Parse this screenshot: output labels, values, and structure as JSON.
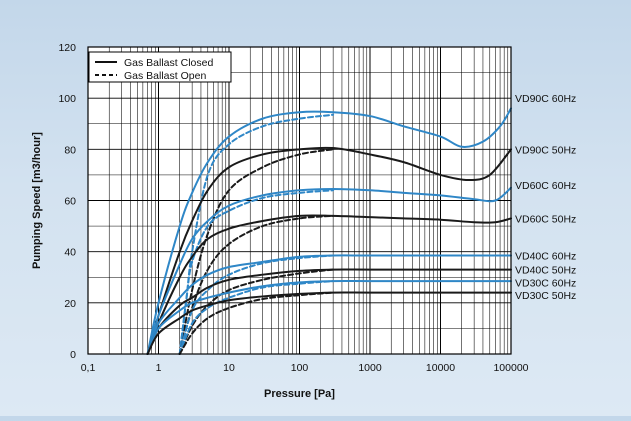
{
  "chart_data": {
    "type": "line",
    "xlabel": "Pressure [Pa]",
    "ylabel": "Pumping Speed [m3/hour]",
    "x_scale": "log",
    "xlim": [
      0.1,
      100000
    ],
    "ylim": [
      0,
      120
    ],
    "x_ticks": [
      {
        "value": 0.1,
        "label": "0,1"
      },
      {
        "value": 1,
        "label": "1"
      },
      {
        "value": 10,
        "label": "10"
      },
      {
        "value": 100,
        "label": "100"
      },
      {
        "value": 1000,
        "label": "1000"
      },
      {
        "value": 10000,
        "label": "10000"
      },
      {
        "value": 100000,
        "label": "100000"
      }
    ],
    "y_ticks": [
      0,
      20,
      40,
      60,
      80,
      100,
      120
    ],
    "grid": true,
    "legend": {
      "position": "top-left",
      "entries": [
        {
          "label": "Gas Ballast Closed",
          "style": "solid"
        },
        {
          "label": "Gas Ballast Open",
          "style": "dashed"
        }
      ]
    },
    "colors": {
      "blue": "#2f87c7",
      "black": "#1a1a1a"
    },
    "series": [
      {
        "name": "VD90C  60Hz",
        "color": "blue",
        "style": "solid",
        "points": [
          [
            0.7,
            0
          ],
          [
            1,
            20
          ],
          [
            2,
            50
          ],
          [
            3,
            63
          ],
          [
            5,
            75
          ],
          [
            10,
            85
          ],
          [
            30,
            92
          ],
          [
            100,
            94.5
          ],
          [
            300,
            94.5
          ],
          [
            1000,
            93
          ],
          [
            3000,
            89
          ],
          [
            10000,
            85
          ],
          [
            20000,
            81
          ],
          [
            40000,
            83
          ],
          [
            70000,
            89
          ],
          [
            100000,
            96
          ]
        ]
      },
      {
        "name": "VD90C  60Hz",
        "color": "blue",
        "style": "dashed",
        "points": [
          [
            2,
            0
          ],
          [
            2.5,
            22
          ],
          [
            3,
            40
          ],
          [
            5,
            70
          ],
          [
            10,
            82
          ],
          [
            30,
            89
          ],
          [
            100,
            92
          ],
          [
            300,
            93.5
          ]
        ]
      },
      {
        "name": "VD90C  50Hz",
        "color": "black",
        "style": "solid",
        "points": [
          [
            0.7,
            0
          ],
          [
            1,
            15
          ],
          [
            2,
            40
          ],
          [
            3,
            52
          ],
          [
            5,
            64
          ],
          [
            10,
            73
          ],
          [
            30,
            78
          ],
          [
            100,
            80
          ],
          [
            300,
            80.5
          ],
          [
            1000,
            78
          ],
          [
            3000,
            75
          ],
          [
            10000,
            70
          ],
          [
            25000,
            68
          ],
          [
            50000,
            70
          ],
          [
            100000,
            80
          ]
        ]
      },
      {
        "name": "VD90C  50Hz",
        "color": "black",
        "style": "dashed",
        "points": [
          [
            2,
            0
          ],
          [
            3,
            25
          ],
          [
            5,
            47
          ],
          [
            10,
            64
          ],
          [
            30,
            73
          ],
          [
            100,
            78
          ],
          [
            300,
            80
          ]
        ]
      },
      {
        "name": "VD60C  60Hz",
        "color": "blue",
        "style": "solid",
        "points": [
          [
            0.7,
            0
          ],
          [
            1,
            15
          ],
          [
            2,
            35
          ],
          [
            3,
            45
          ],
          [
            5,
            52
          ],
          [
            10,
            58
          ],
          [
            30,
            62
          ],
          [
            100,
            64
          ],
          [
            300,
            64.5
          ],
          [
            1000,
            64
          ],
          [
            3000,
            63
          ],
          [
            10000,
            62
          ],
          [
            30000,
            60.5
          ],
          [
            60000,
            60
          ],
          [
            100000,
            65
          ]
        ]
      },
      {
        "name": "VD60C  60Hz",
        "color": "blue",
        "style": "dashed",
        "points": [
          [
            2,
            0
          ],
          [
            2.5,
            22
          ],
          [
            3,
            36
          ],
          [
            5,
            50
          ],
          [
            10,
            56
          ],
          [
            30,
            61
          ],
          [
            100,
            63
          ],
          [
            300,
            64
          ]
        ]
      },
      {
        "name": "VD60C  50Hz",
        "color": "black",
        "style": "solid",
        "points": [
          [
            0.7,
            0
          ],
          [
            1,
            12
          ],
          [
            2,
            30
          ],
          [
            3,
            38
          ],
          [
            5,
            45
          ],
          [
            10,
            49
          ],
          [
            30,
            52
          ],
          [
            100,
            54
          ],
          [
            300,
            54
          ],
          [
            1000,
            53.5
          ],
          [
            3000,
            53
          ],
          [
            10000,
            52.5
          ],
          [
            30000,
            51.5
          ],
          [
            60000,
            51.5
          ],
          [
            100000,
            53
          ]
        ]
      },
      {
        "name": "VD60C  50Hz",
        "color": "black",
        "style": "dashed",
        "points": [
          [
            2,
            0
          ],
          [
            3,
            18
          ],
          [
            5,
            33
          ],
          [
            10,
            43
          ],
          [
            30,
            50
          ],
          [
            100,
            53
          ],
          [
            300,
            54
          ]
        ]
      },
      {
        "name": "VD40C  60Hz",
        "color": "blue",
        "style": "solid",
        "points": [
          [
            0.7,
            0
          ],
          [
            1,
            12
          ],
          [
            2,
            22
          ],
          [
            3,
            27
          ],
          [
            5,
            31
          ],
          [
            10,
            34
          ],
          [
            30,
            36
          ],
          [
            100,
            38
          ],
          [
            300,
            38.5
          ],
          [
            1000,
            38.5
          ],
          [
            10000,
            38.5
          ],
          [
            100000,
            38.5
          ]
        ]
      },
      {
        "name": "VD40C  60Hz",
        "color": "blue",
        "style": "dashed",
        "points": [
          [
            2,
            0
          ],
          [
            3,
            17
          ],
          [
            5,
            25
          ],
          [
            10,
            31
          ],
          [
            30,
            35.5
          ],
          [
            100,
            37.5
          ],
          [
            300,
            38.5
          ]
        ]
      },
      {
        "name": "VD40C  50Hz",
        "color": "black",
        "style": "solid",
        "points": [
          [
            0.7,
            0
          ],
          [
            1,
            10
          ],
          [
            2,
            19
          ],
          [
            3,
            22
          ],
          [
            5,
            26
          ],
          [
            10,
            29
          ],
          [
            30,
            31
          ],
          [
            100,
            32.5
          ],
          [
            300,
            33
          ],
          [
            1000,
            33
          ],
          [
            10000,
            33
          ],
          [
            100000,
            33
          ]
        ]
      },
      {
        "name": "VD40C  50Hz",
        "color": "black",
        "style": "dashed",
        "points": [
          [
            2,
            0
          ],
          [
            3,
            11
          ],
          [
            5,
            19
          ],
          [
            10,
            25
          ],
          [
            30,
            29
          ],
          [
            100,
            31.5
          ],
          [
            300,
            33
          ]
        ]
      },
      {
        "name": "VD30C  60Hz",
        "color": "blue",
        "style": "solid",
        "points": [
          [
            0.7,
            0
          ],
          [
            1,
            10
          ],
          [
            2,
            17
          ],
          [
            3,
            20
          ],
          [
            5,
            22
          ],
          [
            10,
            24
          ],
          [
            30,
            26.5
          ],
          [
            100,
            28
          ],
          [
            300,
            28.5
          ],
          [
            1000,
            28.5
          ],
          [
            10000,
            28.5
          ],
          [
            100000,
            28.5
          ]
        ]
      },
      {
        "name": "VD30C  60Hz",
        "color": "blue",
        "style": "dashed",
        "points": [
          [
            2,
            0
          ],
          [
            3,
            12
          ],
          [
            5,
            18
          ],
          [
            10,
            22
          ],
          [
            30,
            26
          ],
          [
            100,
            27.5
          ],
          [
            300,
            28.5
          ]
        ]
      },
      {
        "name": "VD30C  50Hz",
        "color": "black",
        "style": "solid",
        "points": [
          [
            0.7,
            0
          ],
          [
            1,
            8
          ],
          [
            2,
            14
          ],
          [
            3,
            17
          ],
          [
            5,
            19
          ],
          [
            10,
            21
          ],
          [
            30,
            22.5
          ],
          [
            100,
            23.5
          ],
          [
            300,
            24
          ],
          [
            1000,
            24
          ],
          [
            10000,
            24
          ],
          [
            100000,
            24
          ]
        ]
      },
      {
        "name": "VD30C  50Hz",
        "color": "black",
        "style": "dashed",
        "points": [
          [
            2,
            0
          ],
          [
            3,
            8
          ],
          [
            5,
            14
          ],
          [
            10,
            18
          ],
          [
            30,
            21.5
          ],
          [
            100,
            23
          ],
          [
            300,
            24
          ]
        ]
      }
    ],
    "end_labels": [
      {
        "text": "VD90C  60Hz",
        "y": 100
      },
      {
        "text": "VD90C  50Hz",
        "y": 80
      },
      {
        "text": "VD60C  60Hz",
        "y": 66
      },
      {
        "text": "VD60C  50Hz",
        "y": 53
      },
      {
        "text": "VD40C  60Hz",
        "y": 38.5
      },
      {
        "text": "VD40C  50Hz",
        "y": 33
      },
      {
        "text": "VD30C  60Hz",
        "y": 28
      },
      {
        "text": "VD30C  50Hz",
        "y": 23
      }
    ]
  }
}
